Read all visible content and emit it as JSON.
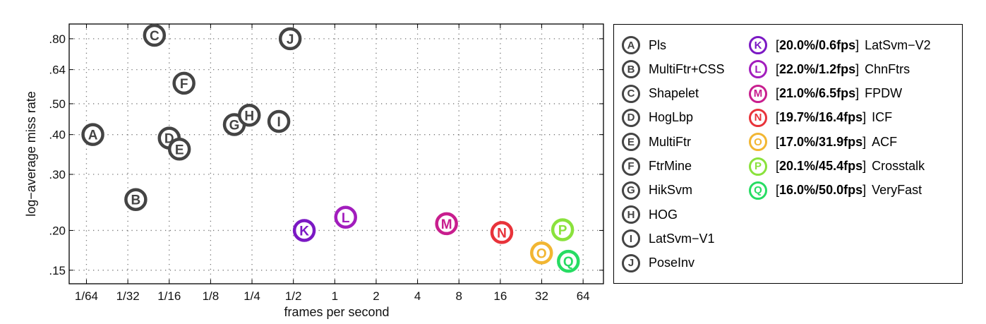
{
  "chart_data": {
    "type": "scatter",
    "xlabel": "frames per second",
    "ylabel": "log−average miss rate",
    "x_scale": "log2",
    "y_scale": "log",
    "xlim": [
      0.0117,
      90
    ],
    "ylim": [
      0.136,
      0.89
    ],
    "x_ticks": [
      0.015625,
      0.03125,
      0.0625,
      0.125,
      0.25,
      0.5,
      1,
      2,
      4,
      8,
      16,
      32,
      64
    ],
    "x_tick_labels": [
      "1/64",
      "1/32",
      "1/16",
      "1/8",
      "1/4",
      "1/2",
      "1",
      "2",
      "4",
      "8",
      "16",
      "32",
      "64"
    ],
    "y_ticks": [
      0.15,
      0.2,
      0.3,
      0.4,
      0.5,
      0.64,
      0.8
    ],
    "y_tick_labels": [
      ".15",
      ".20",
      ".30",
      ".40",
      ".50",
      ".64",
      ".80"
    ],
    "grid": true,
    "legend_position": "right",
    "points": [
      {
        "letter": "A",
        "name": "Pls",
        "fps": 0.0174,
        "miss": 0.4,
        "color": "#444444"
      },
      {
        "letter": "B",
        "name": "MultiFtr+CSS",
        "fps": 0.0357,
        "miss": 0.25,
        "color": "#444444"
      },
      {
        "letter": "C",
        "name": "Shapelet",
        "fps": 0.0488,
        "miss": 0.82,
        "color": "#444444"
      },
      {
        "letter": "D",
        "name": "HogLbp",
        "fps": 0.0625,
        "miss": 0.39,
        "color": "#444444"
      },
      {
        "letter": "E",
        "name": "MultiFtr",
        "fps": 0.0741,
        "miss": 0.36,
        "color": "#444444"
      },
      {
        "letter": "F",
        "name": "FtrMine",
        "fps": 0.08,
        "miss": 0.58,
        "color": "#444444"
      },
      {
        "letter": "G",
        "name": "HikSvm",
        "fps": 0.186,
        "miss": 0.43,
        "color": "#444444"
      },
      {
        "letter": "H",
        "name": "HOG",
        "fps": 0.239,
        "miss": 0.46,
        "color": "#444444"
      },
      {
        "letter": "I",
        "name": "LatSvm−V1",
        "fps": 0.392,
        "miss": 0.44,
        "color": "#444444"
      },
      {
        "letter": "J",
        "name": "PoseInv",
        "fps": 0.474,
        "miss": 0.8,
        "color": "#444444"
      },
      {
        "letter": "K",
        "name": "LatSvm−V2",
        "perf": "20.0%/0.6fps",
        "fps": 0.6,
        "miss": 0.2,
        "color": "#7b18c4"
      },
      {
        "letter": "L",
        "name": "ChnFtrs",
        "perf": "22.0%/1.2fps",
        "fps": 1.2,
        "miss": 0.22,
        "color": "#a21dbd"
      },
      {
        "letter": "M",
        "name": "FPDW",
        "perf": "21.0%/6.5fps",
        "fps": 6.5,
        "miss": 0.21,
        "color": "#c81e8e"
      },
      {
        "letter": "N",
        "name": "ICF",
        "perf": "19.7%/16.4fps",
        "fps": 16.4,
        "miss": 0.197,
        "color": "#e8333a"
      },
      {
        "letter": "O",
        "name": "ACF",
        "perf": "17.0%/31.9fps",
        "fps": 31.9,
        "miss": 0.17,
        "color": "#f2b632"
      },
      {
        "letter": "P",
        "name": "Crosstalk",
        "perf": "20.1%/45.4fps",
        "fps": 45.4,
        "miss": 0.201,
        "color": "#8ae23c"
      },
      {
        "letter": "Q",
        "name": "VeryFast",
        "perf": "16.0%/50.0fps",
        "fps": 50.0,
        "miss": 0.16,
        "color": "#27dc63"
      }
    ]
  }
}
